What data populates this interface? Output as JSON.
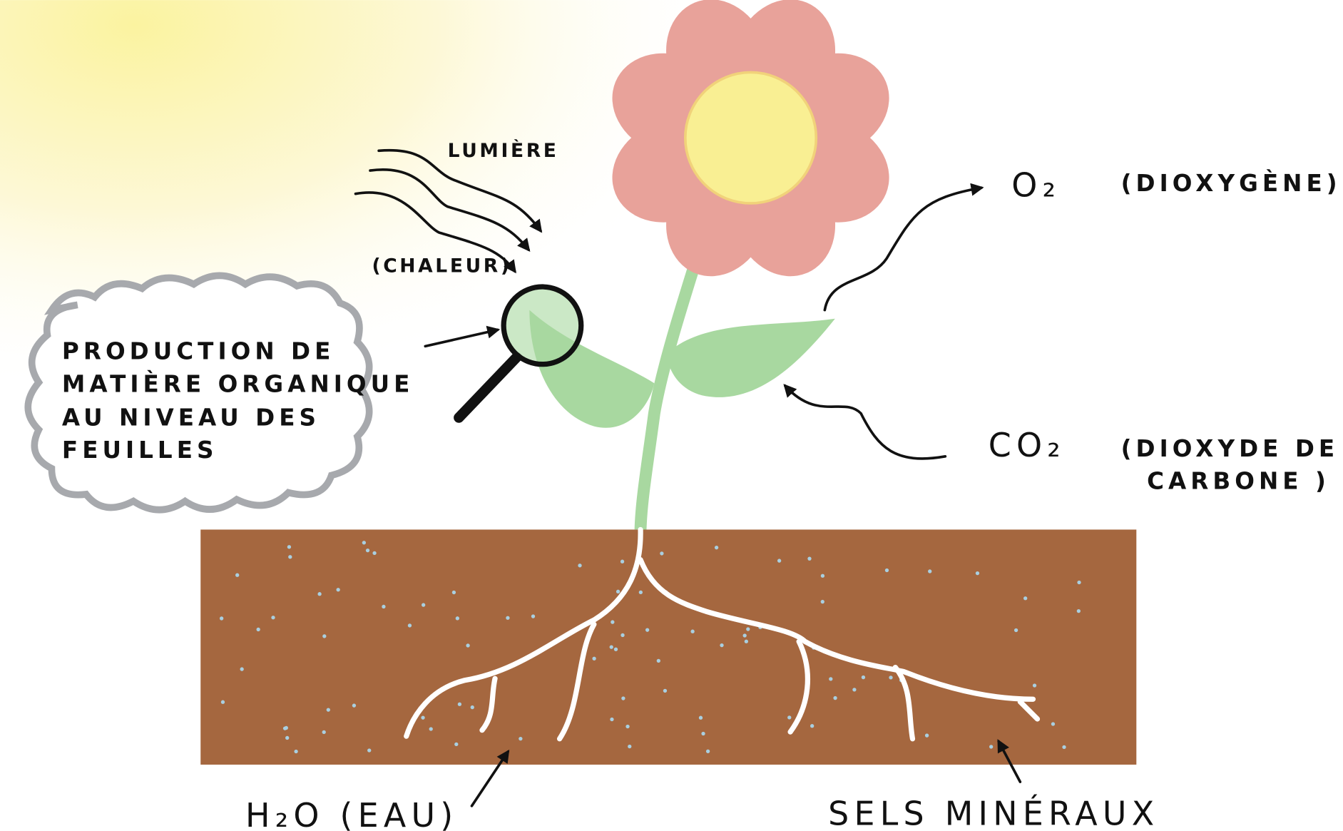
{
  "labels": {
    "light": "LUMIÈRE",
    "heat": "(CHALEUR)",
    "bubble": [
      "PRODUCTION DE",
      "MATIÈRE ORGANIQUE",
      "AU NIVEAU DES",
      "FEUILLES"
    ],
    "o2": {
      "formula": "O₂",
      "name": "(DIOXYGÈNE)"
    },
    "co2": {
      "formula": "CO₂",
      "name": [
        "(DIOXYDE DE",
        "CARBONE )"
      ]
    },
    "water": "H₂O (EAU)",
    "minerals": "SELS MINÉRAUX"
  }
}
